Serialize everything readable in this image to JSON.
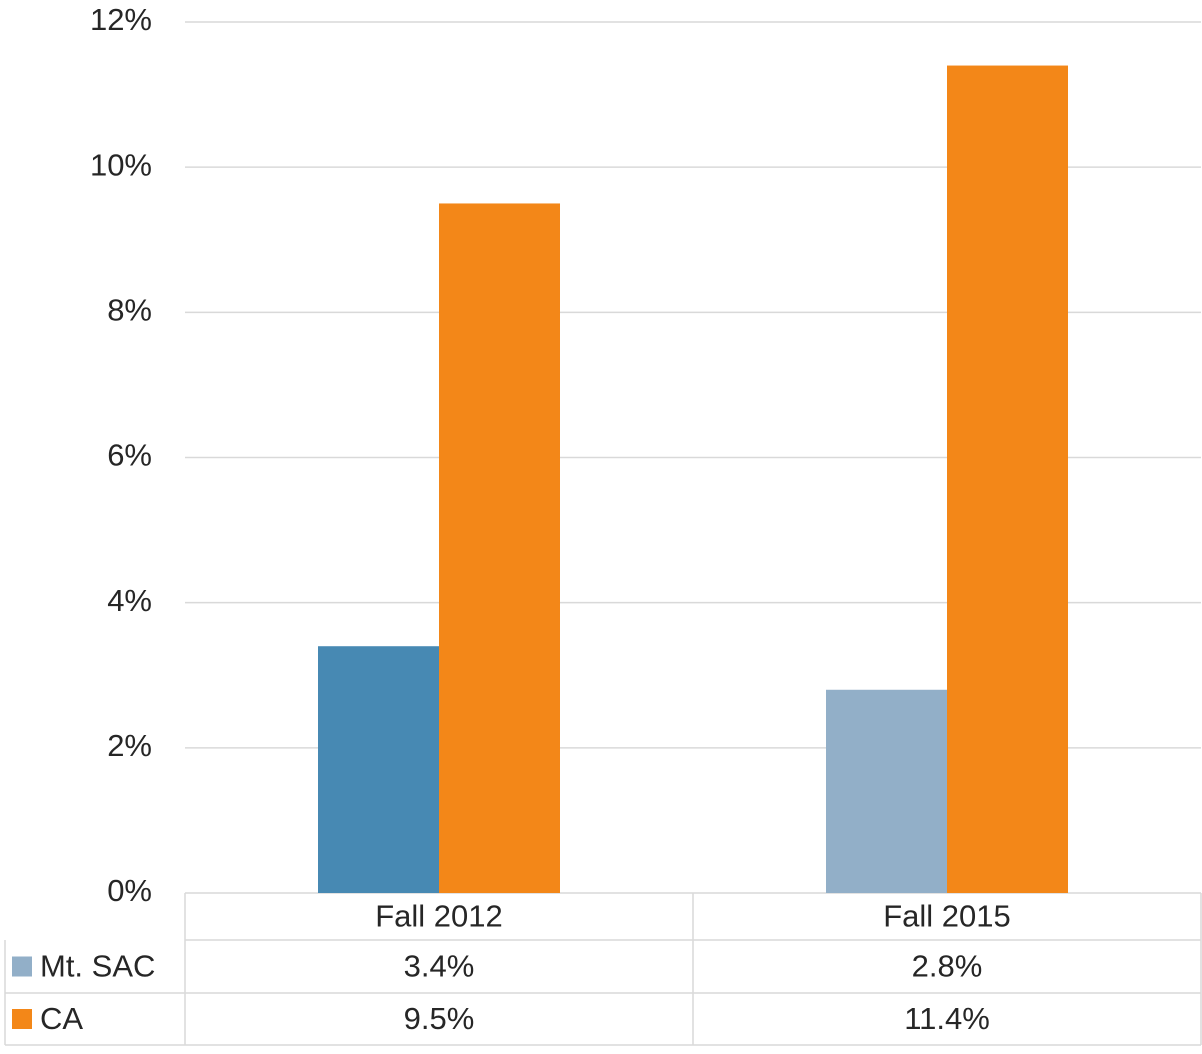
{
  "chart_data": {
    "type": "bar",
    "categories": [
      "Fall 2012",
      "Fall 2015"
    ],
    "series": [
      {
        "name": "Mt. SAC",
        "color": "#92afc8",
        "colors": [
          "#4789b3",
          "#92afc8"
        ],
        "values": [
          3.4,
          2.8
        ],
        "value_labels": [
          "3.4%",
          "2.8%"
        ]
      },
      {
        "name": "CA",
        "color": "#f38718",
        "values": [
          9.5,
          11.4
        ],
        "value_labels": [
          "9.5%",
          "11.4%"
        ]
      }
    ],
    "ylim": [
      0,
      12
    ],
    "yticks": [
      {
        "value": 0,
        "label": "0%"
      },
      {
        "value": 2,
        "label": "2%"
      },
      {
        "value": 4,
        "label": "4%"
      },
      {
        "value": 6,
        "label": "6%"
      },
      {
        "value": 8,
        "label": "8%"
      },
      {
        "value": 10,
        "label": "10%"
      },
      {
        "value": 12,
        "label": "12%"
      }
    ],
    "grid": true,
    "data_table": true
  }
}
